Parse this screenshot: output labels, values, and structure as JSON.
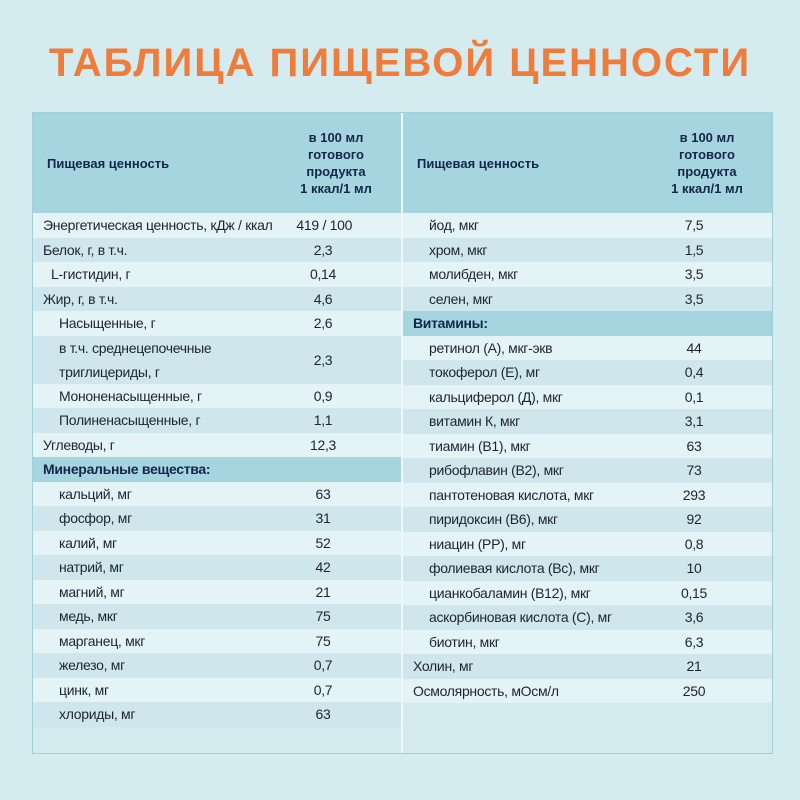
{
  "title": "ТАБЛИЦА ПИЩЕВОЙ ЦЕННОСТИ",
  "colors": {
    "title": "#ef7c3a",
    "background": "#d4ebf0",
    "header": "#a5d6df",
    "row_light": "#e4f3f5",
    "row_dark": "#cfe7ec",
    "header_text": "#16254a"
  },
  "left": {
    "header": {
      "name": "Пищевая ценность",
      "value_lines": [
        "в 100 мл",
        "готового",
        "продукта",
        "1 ккал/1 мл"
      ]
    },
    "rows": [
      {
        "name": "Энергетическая ценность, кДж / ккал",
        "value": "419 / 100"
      },
      {
        "name": "Белок, г, в т.ч.",
        "value": "2,3"
      },
      {
        "name": "L-гистидин, г",
        "value": "0,14"
      },
      {
        "name": "Жир, г, в т.ч.",
        "value": "4,6"
      },
      {
        "name": "Насыщенные, г",
        "value": "2,6"
      },
      {
        "name_lines": [
          "в т.ч. среднецепочечные",
          "триглицериды, г"
        ],
        "value": "2,3"
      },
      {
        "name": "Мононенасыщенные, г",
        "value": "0,9"
      },
      {
        "name": "Полиненасыщенные, г",
        "value": "1,1"
      },
      {
        "name": "Углеводы, г",
        "value": "12,3"
      },
      {
        "name": "Минеральные вещества:"
      },
      {
        "name": "кальций, мг",
        "value": "63"
      },
      {
        "name": "фосфор, мг",
        "value": "31"
      },
      {
        "name": "калий, мг",
        "value": "52"
      },
      {
        "name": "натрий, мг",
        "value": "42"
      },
      {
        "name": "магний, мг",
        "value": "21"
      },
      {
        "name": "медь, мкг",
        "value": "75"
      },
      {
        "name": "марганец, мкг",
        "value": "75"
      },
      {
        "name": "железо, мг",
        "value": "0,7"
      },
      {
        "name": "цинк, мг",
        "value": "0,7"
      },
      {
        "name": "хлориды, мг",
        "value": "63"
      }
    ]
  },
  "right": {
    "header": {
      "name": "Пищевая ценность",
      "value_lines": [
        "в 100 мл",
        "готового",
        "продукта",
        "1 ккал/1 мл"
      ]
    },
    "rows": [
      {
        "name": "йод, мкг",
        "value": "7,5"
      },
      {
        "name": "хром, мкг",
        "value": "1,5"
      },
      {
        "name": "молибден, мкг",
        "value": "3,5"
      },
      {
        "name": "селен, мкг",
        "value": "3,5"
      },
      {
        "name": "Витамины:"
      },
      {
        "name": "ретинол (А), мкг-экв",
        "value": "44"
      },
      {
        "name": "токоферол (Е), мг",
        "value": "0,4"
      },
      {
        "name": "кальциферол (Д), мкг",
        "value": "0,1"
      },
      {
        "name": "витамин К, мкг",
        "value": "3,1"
      },
      {
        "name": "тиамин (В1), мкг",
        "value": "63"
      },
      {
        "name": "рибофлавин (В2), мкг",
        "value": "73"
      },
      {
        "name": "пантотеновая кислота, мкг",
        "value": "293"
      },
      {
        "name": "пиридоксин (В6), мкг",
        "value": "92"
      },
      {
        "name": "ниацин (РР), мг",
        "value": "0,8"
      },
      {
        "name": "фолиевая кислота (Вс), мкг",
        "value": "10"
      },
      {
        "name": "цианкобаламин (В12), мкг",
        "value": "0,15"
      },
      {
        "name": "аскорбиновая кислота (С), мг",
        "value": "3,6"
      },
      {
        "name": "биотин, мкг",
        "value": "6,3"
      },
      {
        "name": "Холин, мг",
        "value": "21"
      },
      {
        "name": "Осмолярность, мОсм/л",
        "value": "250"
      }
    ]
  }
}
